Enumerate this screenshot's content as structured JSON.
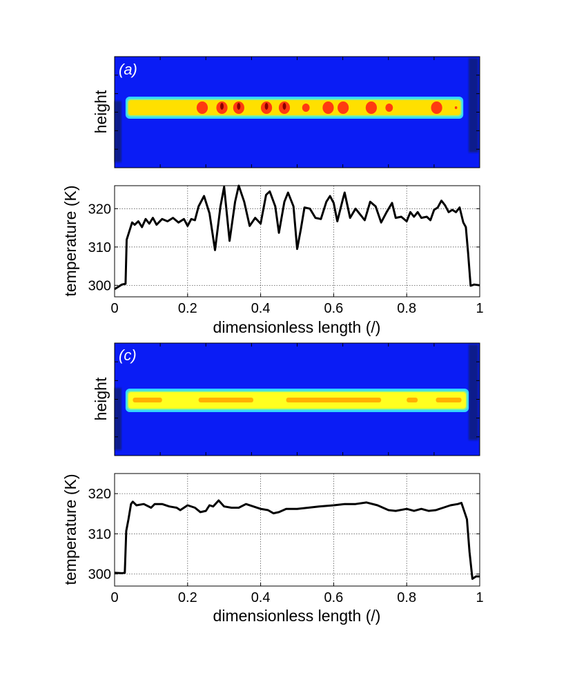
{
  "chart_data": [
    {
      "type": "heatmap",
      "panel_label": "(a)",
      "ylabel": "height",
      "colors": {
        "background": "#0a1cf5",
        "edge_dark": "#0a1a8c",
        "rim": "#33d6ff",
        "rim2": "#7cf0a0",
        "band": "#ffe000",
        "hot": "#ff3a10",
        "hottest": "#8b0000"
      },
      "band_extent": [
        0.03,
        0.955
      ],
      "hot_spots": [
        0.24,
        0.294,
        0.34,
        0.416,
        0.465,
        0.524,
        0.585,
        0.626,
        0.703,
        0.752,
        0.882,
        0.935
      ],
      "hottest_spots": [
        0.294,
        0.34,
        0.416,
        0.465
      ]
    },
    {
      "type": "line",
      "xlabel": "dimensionless length (/)",
      "ylabel": "temperature (K)",
      "xlim": [
        0,
        1
      ],
      "ylim": [
        297,
        326
      ],
      "xticks": [
        "0",
        "0.2",
        "0.4",
        "0.6",
        "0.8",
        "1"
      ],
      "yticks": [
        "300",
        "310",
        "320"
      ],
      "grid": true,
      "x": [
        0,
        0.02,
        0.03,
        0.033,
        0.04,
        0.048,
        0.055,
        0.065,
        0.075,
        0.085,
        0.095,
        0.105,
        0.115,
        0.13,
        0.145,
        0.16,
        0.175,
        0.19,
        0.2,
        0.21,
        0.22,
        0.23,
        0.245,
        0.26,
        0.275,
        0.29,
        0.3,
        0.315,
        0.33,
        0.34,
        0.355,
        0.37,
        0.385,
        0.4,
        0.415,
        0.425,
        0.44,
        0.45,
        0.465,
        0.475,
        0.49,
        0.5,
        0.51,
        0.52,
        0.535,
        0.55,
        0.565,
        0.58,
        0.59,
        0.6,
        0.61,
        0.625,
        0.63,
        0.645,
        0.66,
        0.675,
        0.685,
        0.7,
        0.715,
        0.73,
        0.745,
        0.76,
        0.77,
        0.785,
        0.8,
        0.81,
        0.82,
        0.83,
        0.84,
        0.855,
        0.865,
        0.875,
        0.885,
        0.895,
        0.905,
        0.915,
        0.925,
        0.935,
        0.945,
        0.955,
        0.962,
        0.968,
        0.975,
        0.985,
        1.0
      ],
      "y": [
        299,
        300.2,
        300.4,
        311.9,
        314,
        316.4,
        315.8,
        316.7,
        315.2,
        317.3,
        316.1,
        317.6,
        315.8,
        317.3,
        316.7,
        317.6,
        316.4,
        317.3,
        315.5,
        317.3,
        317,
        320.6,
        323.3,
        318.8,
        309.2,
        320.6,
        325.7,
        311.6,
        321.8,
        326,
        321.8,
        315.5,
        317.6,
        316.1,
        323.6,
        324.5,
        320.6,
        313.7,
        321.8,
        324.2,
        320.6,
        309.5,
        314.6,
        320.3,
        320,
        317.6,
        317.3,
        321.8,
        323.3,
        321.5,
        316.7,
        322.4,
        324.2,
        317.6,
        320,
        318.2,
        317,
        321.8,
        320.6,
        316.4,
        319.1,
        321.5,
        317.6,
        317.9,
        316.7,
        319.1,
        317.9,
        319.1,
        317.6,
        317.9,
        317,
        319.7,
        320.3,
        322.1,
        320.9,
        319.1,
        319.7,
        319.1,
        320.3,
        316.4,
        315.2,
        308.6,
        299.9,
        300.2,
        300
      ]
    },
    {
      "type": "heatmap",
      "panel_label": "(c)",
      "ylabel": "height",
      "colors": {
        "background": "#0a1cf5",
        "edge_dark": "#0a1a8c",
        "rim": "#33d6ff",
        "rim2": "#7cf0a0",
        "band": "#ffff20",
        "warm": "#ffb000"
      },
      "band_extent": [
        0.03,
        0.97
      ]
    },
    {
      "type": "line",
      "xlabel": "dimensionless length (/)",
      "ylabel": "temperature (K)",
      "xlim": [
        0,
        1
      ],
      "ylim": [
        297,
        325
      ],
      "xticks": [
        "0",
        "0.2",
        "0.4",
        "0.6",
        "0.8",
        "1"
      ],
      "yticks": [
        "300",
        "310",
        "320"
      ],
      "grid": true,
      "x": [
        0,
        0.02,
        0.028,
        0.032,
        0.038,
        0.045,
        0.05,
        0.06,
        0.08,
        0.1,
        0.11,
        0.13,
        0.15,
        0.17,
        0.18,
        0.2,
        0.22,
        0.235,
        0.25,
        0.26,
        0.27,
        0.285,
        0.3,
        0.32,
        0.34,
        0.36,
        0.38,
        0.4,
        0.42,
        0.435,
        0.45,
        0.47,
        0.5,
        0.53,
        0.56,
        0.6,
        0.63,
        0.66,
        0.69,
        0.72,
        0.75,
        0.77,
        0.8,
        0.82,
        0.84,
        0.86,
        0.88,
        0.9,
        0.92,
        0.94,
        0.95,
        0.96,
        0.965,
        0.972,
        0.98,
        0.99,
        1
      ],
      "y": [
        300.3,
        300.2,
        300.3,
        310.7,
        313.6,
        317.4,
        318,
        317.1,
        317.4,
        316.5,
        317.4,
        317.4,
        316.8,
        316.5,
        315.9,
        317.1,
        316.5,
        315.4,
        315.7,
        317.1,
        316.8,
        318.3,
        316.8,
        316.5,
        316.5,
        317.4,
        316.8,
        316.2,
        315.9,
        315.1,
        315.4,
        316.2,
        316.2,
        316.5,
        316.8,
        317.1,
        317.4,
        317.4,
        317.8,
        317.1,
        315.9,
        315.7,
        316.2,
        315.7,
        316.2,
        315.7,
        315.9,
        316.5,
        317.1,
        317.4,
        317.7,
        315,
        313.6,
        305.5,
        298.8,
        299.4,
        299.4
      ]
    }
  ]
}
